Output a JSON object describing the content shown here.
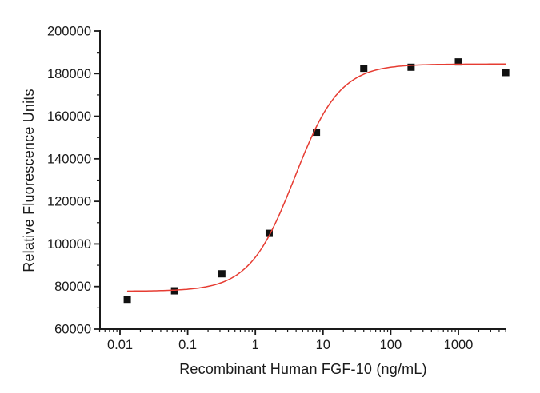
{
  "chart_data": {
    "type": "scatter",
    "title": "",
    "xlabel": "Recombinant Human FGF-10 (ng/mL)",
    "ylabel": "Relative Fluorescence Units",
    "x_scale": "log",
    "xlim": [
      0.0048,
      5200
    ],
    "ylim": [
      60000,
      200000
    ],
    "xticks": {
      "values": [
        0.01,
        0.1,
        1,
        10,
        100,
        1000
      ],
      "labels": [
        "0.01",
        "0.1",
        "1",
        "10",
        "100",
        "1000"
      ]
    },
    "ytick_major_step": 20000,
    "ytick_minor_step": 10000,
    "grid": false,
    "legend": null,
    "points": [
      {
        "x": 0.0128,
        "y": 74000
      },
      {
        "x": 0.064,
        "y": 78000
      },
      {
        "x": 0.32,
        "y": 86000
      },
      {
        "x": 1.6,
        "y": 105000
      },
      {
        "x": 8,
        "y": 152500
      },
      {
        "x": 40,
        "y": 182500
      },
      {
        "x": 200,
        "y": 183000
      },
      {
        "x": 1000,
        "y": 185500
      },
      {
        "x": 5000,
        "y": 180500
      }
    ],
    "fit": {
      "model": "4PL",
      "bottom": 77800,
      "top": 184500,
      "ec50": 3.8,
      "hill": 1.3,
      "x_start": 0.013,
      "x_end": 5000
    },
    "marker": {
      "shape": "square",
      "size": 9,
      "color": "#111111"
    },
    "colors": {
      "axis": "#1a1a1a",
      "text": "#1a1a1a",
      "fit_line": "#e63c32"
    }
  }
}
